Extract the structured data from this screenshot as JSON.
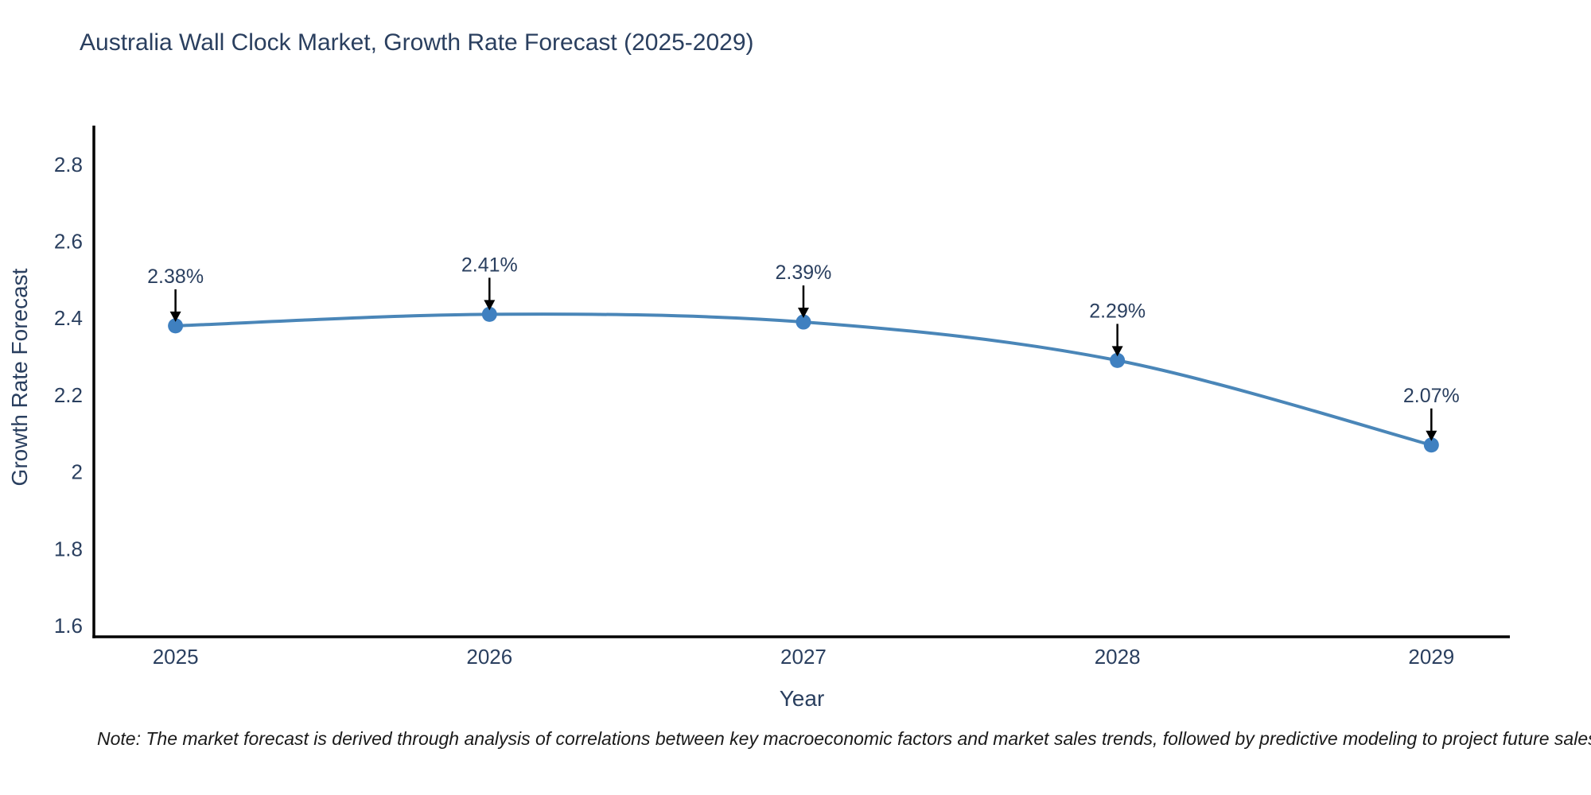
{
  "title": {
    "text": "Australia Wall Clock Market, Growth Rate Forecast (2025-2029)",
    "color": "#2a3f5f"
  },
  "chart_data": {
    "type": "line",
    "x": [
      2025,
      2026,
      2027,
      2028,
      2029
    ],
    "y": [
      2.38,
      2.41,
      2.39,
      2.29,
      2.07
    ],
    "point_labels": [
      "2.38%",
      "2.41%",
      "2.39%",
      "2.29%",
      "2.07%"
    ],
    "x_tick_labels": [
      "2025",
      "2026",
      "2027",
      "2028",
      "2029"
    ],
    "y_ticks": [
      1.6,
      1.8,
      2,
      2.2,
      2.4,
      2.6,
      2.8
    ],
    "xlabel": "Year",
    "ylabel": "Growth Rate Forecast",
    "xlim": [
      2024.74,
      2029.25
    ],
    "ylim": [
      1.571,
      2.901
    ],
    "grid": false,
    "legend": "none",
    "line_shape": "spline",
    "line_color": "#4a86b8",
    "marker_color": "#3f80c0",
    "arrow_color": "#000000",
    "axis_line_color": "#000000",
    "text_color": "#2a3f5f"
  },
  "note": {
    "text": "Note: The market forecast is derived through analysis of correlations between key macroeconomic factors and market sales trends, followed by predictive modeling to project future sales"
  }
}
